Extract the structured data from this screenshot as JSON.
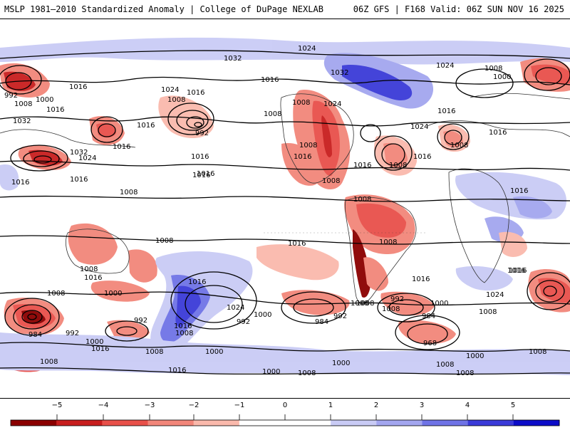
{
  "header": {
    "left_title": "MSLP 1981–2010 Standardized Anomaly | College of DuPage NEXLAB",
    "right_title": "06Z GFS | F168 Valid: 06Z SUN NOV 16 2025"
  },
  "isobar_labels": [
    "1032",
    "1024",
    "1024",
    "992",
    "1000",
    "1008",
    "1016",
    "1032",
    "1016",
    "1024",
    "1016",
    "1032",
    "1024",
    "1016",
    "1016",
    "1008",
    "1016",
    "992",
    "1016",
    "1016",
    "1016",
    "1008",
    "1008",
    "1024",
    "1016",
    "1016",
    "1032",
    "1008",
    "1000",
    "1016",
    "1016",
    "1016",
    "1008",
    "1024",
    "1008",
    "1008",
    "1016",
    "1008",
    "1008",
    "1016",
    "1008",
    "1008",
    "1008",
    "1016",
    "1016",
    "1008",
    "1008",
    "1000",
    "1016",
    "1024",
    "1000",
    "992",
    "992",
    "1000",
    "984",
    "992",
    "1016",
    "1008",
    "1000",
    "1008",
    "1016",
    "1008",
    "1016",
    "1016",
    "1024",
    "1008",
    "1000",
    "992",
    "984",
    "1008",
    "968",
    "992",
    "1000",
    "984",
    "1008",
    "1000",
    "1008",
    "1008",
    "1008",
    "1000",
    "1008",
    "1008",
    "1016",
    "1016",
    "1016"
  ],
  "colors": {
    "neg5": "#8b0000",
    "neg4": "#c81e1e",
    "neg3": "#e8504a",
    "neg2": "#f2867a",
    "neg1": "#fab9ac",
    "zero": "#ffffff",
    "pos1": "#c9cbf5",
    "pos2": "#a3a6ef",
    "pos3": "#6f73e6",
    "pos4": "#3a3ad8",
    "pos5": "#0c0cc8"
  },
  "colorbar": {
    "labels": [
      "−5",
      "−4",
      "−3",
      "−2",
      "−1",
      "0",
      "1",
      "2",
      "3",
      "4",
      "5"
    ]
  }
}
